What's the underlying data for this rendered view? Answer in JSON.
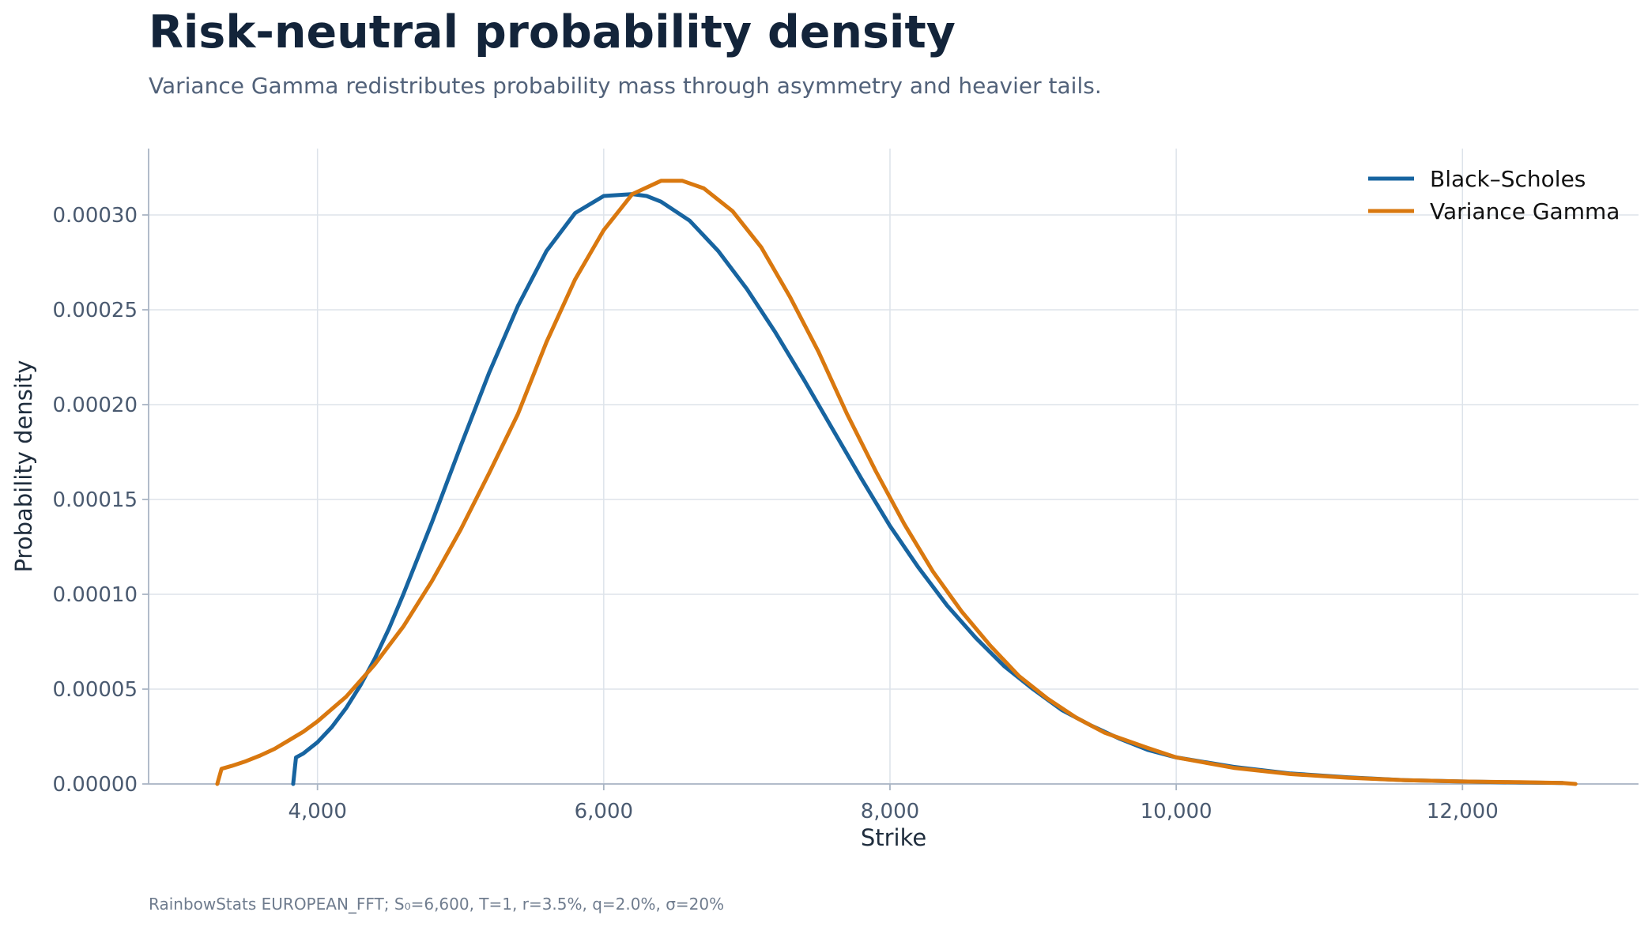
{
  "chart_data": {
    "type": "line",
    "title": "Risk-neutral probability density",
    "subtitle": "Variance Gamma redistributes probability mass through asymmetry and heavier tails.",
    "footer": "RainbowStats EUROPEAN_FFT; S₀=6,600, T=1, r=3.5%, q=2.0%, σ=20%",
    "xlabel": "Strike",
    "ylabel": "Probability density",
    "xlim": [
      2820,
      13230
    ],
    "ylim": [
      0,
      0.000335
    ],
    "x_ticks": [
      4000,
      6000,
      8000,
      10000,
      12000
    ],
    "x_tick_labels": [
      "4,000",
      "6,000",
      "8,000",
      "10,000",
      "12,000"
    ],
    "y_ticks": [
      0,
      5e-05,
      0.0001,
      0.00015,
      0.0002,
      0.00025,
      0.0003
    ],
    "y_tick_labels": [
      "0.00000",
      "0.00005",
      "0.00010",
      "0.00015",
      "0.00020",
      "0.00025",
      "0.00030"
    ],
    "grid": true,
    "legend_position": "top-right",
    "series": [
      {
        "name": "Black–Scholes",
        "color": "#1764a0",
        "x": [
          3830,
          3850,
          3900,
          4000,
          4100,
          4200,
          4300,
          4400,
          4500,
          4600,
          4700,
          4800,
          4900,
          5000,
          5200,
          5400,
          5600,
          5800,
          6000,
          6200,
          6300,
          6400,
          6600,
          6800,
          7000,
          7200,
          7400,
          7600,
          7800,
          8000,
          8200,
          8400,
          8600,
          8800,
          9000,
          9200,
          9400,
          9600,
          9800,
          10000,
          10400,
          10800,
          11200,
          11600,
          12000,
          12400,
          12700
        ],
        "y": [
          0.0,
          1.4e-05,
          1.6e-05,
          2.2e-05,
          3e-05,
          4e-05,
          5.2e-05,
          6.6e-05,
          8.2e-05,
          0.0001,
          0.000119,
          0.000138,
          0.000158,
          0.000178,
          0.000217,
          0.000252,
          0.000281,
          0.000301,
          0.00031,
          0.000311,
          0.00031,
          0.000307,
          0.000297,
          0.000281,
          0.000261,
          0.000238,
          0.000213,
          0.000187,
          0.000161,
          0.000136,
          0.000114,
          9.4e-05,
          7.7e-05,
          6.2e-05,
          5e-05,
          3.9e-05,
          3.1e-05,
          2.4e-05,
          1.8e-05,
          1.4e-05,
          9e-06,
          5.5e-06,
          3.5e-06,
          2e-06,
          1.3e-06,
          8e-07,
          5e-07
        ]
      },
      {
        "name": "Variance Gamma",
        "color": "#d9780f",
        "x": [
          3300,
          3330,
          3400,
          3500,
          3600,
          3700,
          3800,
          3900,
          4000,
          4200,
          4400,
          4600,
          4800,
          5000,
          5200,
          5400,
          5600,
          5800,
          6000,
          6200,
          6400,
          6550,
          6700,
          6900,
          7100,
          7300,
          7500,
          7700,
          7900,
          8100,
          8300,
          8500,
          8700,
          8900,
          9100,
          9300,
          9500,
          9800,
          10000,
          10400,
          10800,
          11200,
          11600,
          12000,
          12400,
          12700,
          12790
        ],
        "y": [
          0.0,
          8e-06,
          9.5e-06,
          1.2e-05,
          1.5e-05,
          1.85e-05,
          2.3e-05,
          2.75e-05,
          3.3e-05,
          4.6e-05,
          6.3e-05,
          8.3e-05,
          0.000107,
          0.000134,
          0.000164,
          0.000195,
          0.000233,
          0.000266,
          0.000292,
          0.000311,
          0.000318,
          0.000318,
          0.000314,
          0.000302,
          0.000283,
          0.000257,
          0.000228,
          0.000195,
          0.000165,
          0.000137,
          0.000112,
          9.1e-05,
          7.3e-05,
          5.7e-05,
          4.5e-05,
          3.5e-05,
          2.7e-05,
          1.9e-05,
          1.4e-05,
          8.5e-06,
          5.2e-06,
          3.3e-06,
          2e-06,
          1.3e-06,
          9e-07,
          5e-07,
          0.0
        ]
      }
    ]
  }
}
